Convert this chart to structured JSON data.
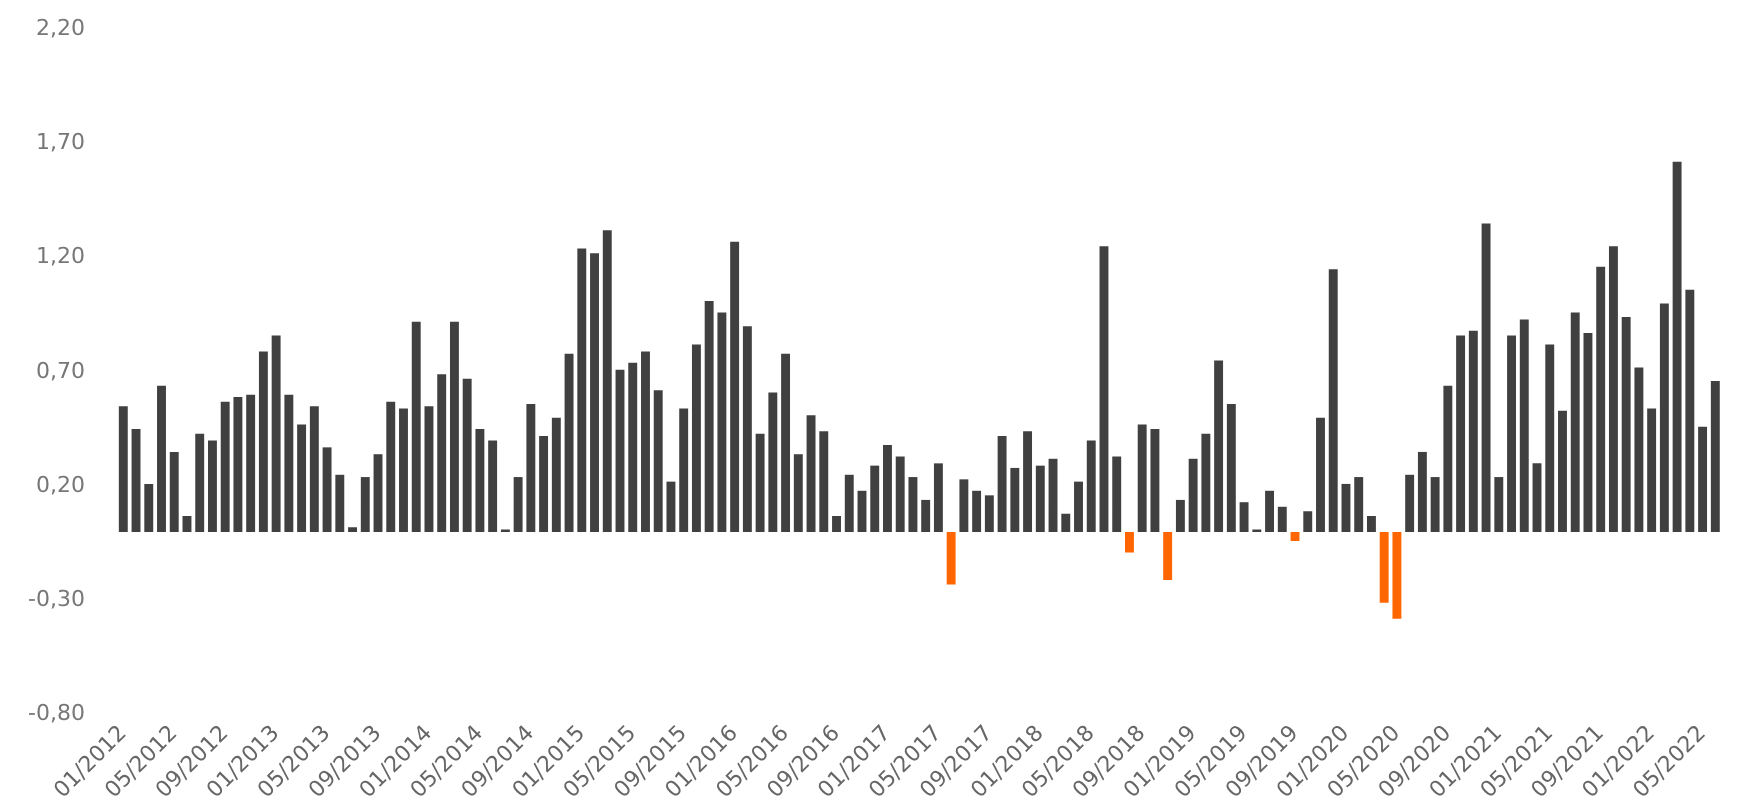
{
  "chart_data": {
    "type": "bar",
    "categories": [
      "01/2012",
      null,
      null,
      null,
      "05/2012",
      null,
      null,
      null,
      "09/2012",
      null,
      null,
      null,
      "01/2013",
      null,
      null,
      null,
      "05/2013",
      null,
      null,
      null,
      "09/2013",
      null,
      null,
      null,
      "01/2014",
      null,
      null,
      null,
      "05/2014",
      null,
      null,
      null,
      "09/2014",
      null,
      null,
      null,
      "01/2015",
      null,
      null,
      null,
      "05/2015",
      null,
      null,
      null,
      "09/2015",
      null,
      null,
      null,
      "01/2016",
      null,
      null,
      null,
      "05/2016",
      null,
      null,
      null,
      "09/2016",
      null,
      null,
      null,
      "01/2017",
      null,
      null,
      null,
      "05/2017",
      null,
      null,
      null,
      "09/2017",
      null,
      null,
      null,
      "01/2018",
      null,
      null,
      null,
      "05/2018",
      null,
      null,
      null,
      "09/2018",
      null,
      null,
      null,
      "01/2019",
      null,
      null,
      null,
      "05/2019",
      null,
      null,
      null,
      "09/2019",
      null,
      null,
      null,
      "01/2020",
      null,
      null,
      null,
      "05/2020",
      null,
      null,
      null,
      "09/2020",
      null,
      null,
      null,
      "01/2021",
      null,
      null,
      null,
      "05/2021",
      null,
      null,
      null,
      "09/2021",
      null,
      null,
      null,
      "01/2022",
      null,
      null,
      null,
      "05/2022",
      null
    ],
    "values": [
      0.55,
      0.45,
      0.21,
      0.64,
      0.35,
      0.07,
      0.43,
      0.4,
      0.57,
      0.59,
      0.6,
      0.79,
      0.86,
      0.6,
      0.47,
      0.55,
      0.37,
      0.25,
      0.02,
      0.24,
      0.34,
      0.57,
      0.54,
      0.92,
      0.55,
      0.69,
      0.92,
      0.67,
      0.45,
      0.4,
      0.01,
      0.24,
      0.56,
      0.42,
      0.5,
      0.78,
      1.24,
      1.22,
      1.32,
      0.71,
      0.74,
      0.79,
      0.62,
      0.22,
      0.54,
      0.82,
      1.01,
      0.96,
      1.27,
      0.9,
      0.43,
      0.61,
      0.78,
      0.34,
      0.51,
      0.44,
      0.07,
      0.25,
      0.18,
      0.29,
      0.38,
      0.33,
      0.24,
      0.14,
      0.3,
      -0.23,
      0.23,
      0.18,
      0.16,
      0.42,
      0.28,
      0.44,
      0.29,
      0.32,
      0.08,
      0.22,
      0.4,
      1.25,
      0.33,
      -0.09,
      0.47,
      0.45,
      -0.21,
      0.14,
      0.32,
      0.43,
      0.75,
      0.56,
      0.13,
      0.01,
      0.18,
      0.11,
      -0.04,
      0.09,
      0.5,
      1.15,
      0.21,
      0.24,
      0.07,
      -0.31,
      -0.38,
      0.25,
      0.35,
      0.24,
      0.64,
      0.86,
      0.88,
      1.35,
      0.24,
      0.86,
      0.93,
      0.3,
      0.82,
      0.53,
      0.96,
      0.87,
      1.16,
      1.25,
      0.94,
      0.72,
      0.54,
      1.0,
      1.62,
      1.06,
      0.46,
      0.66
    ],
    "colors": [
      "#404040",
      "#404040",
      "#404040",
      "#404040",
      "#404040",
      "#404040",
      "#404040",
      "#404040",
      "#404040",
      "#404040",
      "#404040",
      "#404040",
      "#404040",
      "#404040",
      "#404040",
      "#404040",
      "#404040",
      "#404040",
      "#404040",
      "#404040",
      "#404040",
      "#404040",
      "#404040",
      "#404040",
      "#404040",
      "#404040",
      "#404040",
      "#404040",
      "#404040",
      "#404040",
      "#404040",
      "#404040",
      "#404040",
      "#404040",
      "#404040",
      "#404040",
      "#404040",
      "#404040",
      "#404040",
      "#404040",
      "#404040",
      "#404040",
      "#404040",
      "#404040",
      "#404040",
      "#404040",
      "#404040",
      "#404040",
      "#404040",
      "#404040",
      "#404040",
      "#404040",
      "#404040",
      "#404040",
      "#404040",
      "#404040",
      "#404040",
      "#404040",
      "#404040",
      "#404040",
      "#404040",
      "#404040",
      "#404040",
      "#404040",
      "#404040",
      "#ff6600",
      "#404040",
      "#404040",
      "#404040",
      "#404040",
      "#404040",
      "#404040",
      "#404040",
      "#404040",
      "#404040",
      "#404040",
      "#404040",
      "#404040",
      "#404040",
      "#ff6600",
      "#404040",
      "#404040",
      "#ff6600",
      "#404040",
      "#404040",
      "#404040",
      "#404040",
      "#404040",
      "#404040",
      "#404040",
      "#404040",
      "#404040",
      "#ff6600",
      "#404040",
      "#404040",
      "#404040",
      "#404040",
      "#404040",
      "#404040",
      "#ff6600",
      "#ff6600",
      "#404040",
      "#404040",
      "#404040",
      "#404040",
      "#404040",
      "#404040",
      "#404040",
      "#404040",
      "#404040",
      "#404040",
      "#404040",
      "#404040",
      "#404040",
      "#404040",
      "#404040",
      "#404040",
      "#404040",
      "#404040",
      "#404040",
      "#404040",
      "#404040",
      "#404040",
      "#404040",
      "#404040",
      "#404040"
    ],
    "ylim": [
      -0.8,
      2.2
    ],
    "yticks": [
      {
        "value": -0.8,
        "label": "-0,80"
      },
      {
        "value": -0.3,
        "label": "-0,30"
      },
      {
        "value": 0.2,
        "label": "0,20"
      },
      {
        "value": 0.7,
        "label": "0,70"
      },
      {
        "value": 1.2,
        "label": "1,20"
      },
      {
        "value": 1.7,
        "label": "1,70"
      },
      {
        "value": 2.2,
        "label": "2,20"
      }
    ],
    "grid": false,
    "legend": false
  }
}
